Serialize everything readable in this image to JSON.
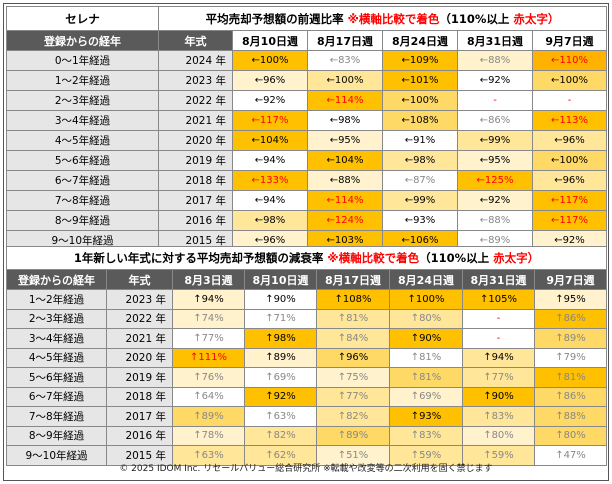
{
  "colors": {
    "header_bg": "#5a5a5a",
    "label_bg": "#e6e6e6",
    "accent_red": "#ff0000",
    "lv0": "#ffffff",
    "lv1": "#fff2cc",
    "lv2": "#ffe699",
    "lv3": "#ffd966",
    "lv4": "#ffc000",
    "lv5": "#ffb300"
  },
  "table1": {
    "model": "セレナ",
    "title": "平均売却予想額の前週比率",
    "note": "※横軸比較で着色",
    "note2": "（110%以上",
    "note3": "赤太字）",
    "headers": [
      "登録からの経年",
      "年式",
      "8月10日週",
      "8月17日週",
      "8月24日週",
      "8月31日週",
      "9月7日週"
    ],
    "rows": [
      {
        "label": "0～1年経過",
        "year": "2024 年",
        "cells": [
          {
            "t": "←100%",
            "c": 4,
            "b": true
          },
          {
            "t": "←83%",
            "c": 0,
            "g": true
          },
          {
            "t": "←109%",
            "c": 4,
            "b": true
          },
          {
            "t": "←88%",
            "c": 1,
            "g": true
          },
          {
            "t": "←110%",
            "c": 5,
            "r": true
          }
        ]
      },
      {
        "label": "1～2年経過",
        "year": "2023 年",
        "cells": [
          {
            "t": "←96%",
            "c": 1
          },
          {
            "t": "←100%",
            "c": 2
          },
          {
            "t": "←101%",
            "c": 4,
            "b": true
          },
          {
            "t": "←92%",
            "c": 0
          },
          {
            "t": "←100%",
            "c": 3,
            "b": true
          }
        ]
      },
      {
        "label": "2～3年経過",
        "year": "2022 年",
        "cells": [
          {
            "t": "←92%",
            "c": 0
          },
          {
            "t": "←114%",
            "c": 4,
            "r": true
          },
          {
            "t": "←100%",
            "c": 3,
            "b": true
          },
          {
            "t": "-",
            "c": 0,
            "r": true
          },
          {
            "t": "-",
            "c": 0,
            "r": true
          }
        ]
      },
      {
        "label": "3～4年経過",
        "year": "2021 年",
        "cells": [
          {
            "t": "←117%",
            "c": 4,
            "r": true
          },
          {
            "t": "←98%",
            "c": 0
          },
          {
            "t": "←108%",
            "c": 3,
            "b": true
          },
          {
            "t": "←86%",
            "c": 0,
            "g": true
          },
          {
            "t": "←113%",
            "c": 4,
            "r": true
          }
        ]
      },
      {
        "label": "4～5年経過",
        "year": "2020 年",
        "cells": [
          {
            "t": "←104%",
            "c": 4,
            "b": true
          },
          {
            "t": "←95%",
            "c": 1
          },
          {
            "t": "←91%",
            "c": 0
          },
          {
            "t": "←99%",
            "c": 2
          },
          {
            "t": "←96%",
            "c": 2
          }
        ]
      },
      {
        "label": "5～6年経過",
        "year": "2019 年",
        "cells": [
          {
            "t": "←94%",
            "c": 0
          },
          {
            "t": "←104%",
            "c": 4,
            "b": true
          },
          {
            "t": "←98%",
            "c": 2
          },
          {
            "t": "←95%",
            "c": 1
          },
          {
            "t": "←100%",
            "c": 3
          }
        ]
      },
      {
        "label": "6～7年経過",
        "year": "2018 年",
        "cells": [
          {
            "t": "←133%",
            "c": 4,
            "r": true
          },
          {
            "t": "←88%",
            "c": 1
          },
          {
            "t": "←87%",
            "c": 0,
            "g": true
          },
          {
            "t": "←125%",
            "c": 4,
            "r": true
          },
          {
            "t": "←96%",
            "c": 2
          }
        ]
      },
      {
        "label": "7～8年経過",
        "year": "2017 年",
        "cells": [
          {
            "t": "←94%",
            "c": 0
          },
          {
            "t": "←114%",
            "c": 4,
            "r": true
          },
          {
            "t": "←99%",
            "c": 2
          },
          {
            "t": "←92%",
            "c": 1
          },
          {
            "t": "←117%",
            "c": 4,
            "r": true
          }
        ]
      },
      {
        "label": "8～9年経過",
        "year": "2016 年",
        "cells": [
          {
            "t": "←98%",
            "c": 2
          },
          {
            "t": "←124%",
            "c": 4,
            "r": true
          },
          {
            "t": "←93%",
            "c": 0
          },
          {
            "t": "←88%",
            "c": 0,
            "g": true
          },
          {
            "t": "←117%",
            "c": 4,
            "r": true
          }
        ]
      },
      {
        "label": "9～10年経過",
        "year": "2015 年",
        "cells": [
          {
            "t": "←96%",
            "c": 1
          },
          {
            "t": "←103%",
            "c": 4,
            "b": true
          },
          {
            "t": "←106%",
            "c": 4,
            "b": true
          },
          {
            "t": "←89%",
            "c": 0,
            "g": true
          },
          {
            "t": "←92%",
            "c": 1
          }
        ]
      }
    ]
  },
  "table2": {
    "title": "1年新しい年式に対する平均売却予想額の減衰率",
    "note": "※横軸比較で着色",
    "note2": "（110%以上",
    "note3": "赤太字）",
    "headers": [
      "登録からの経年",
      "年式",
      "8月3日週",
      "8月10日週",
      "8月17日週",
      "8月24日週",
      "8月31日週",
      "9月7日週"
    ],
    "rows": [
      {
        "label": "1～2年経過",
        "year": "2023 年",
        "cells": [
          {
            "t": "↑94%",
            "c": 1
          },
          {
            "t": "↑90%",
            "c": 0
          },
          {
            "t": "↑108%",
            "c": 4,
            "b": true
          },
          {
            "t": "↑100%",
            "c": 4,
            "b": true
          },
          {
            "t": "↑105%",
            "c": 4,
            "b": true
          },
          {
            "t": "↑95%",
            "c": 1
          }
        ]
      },
      {
        "label": "2～3年経過",
        "year": "2022 年",
        "cells": [
          {
            "t": "↑74%",
            "c": 1,
            "g": true
          },
          {
            "t": "↑71%",
            "c": 0,
            "g": true
          },
          {
            "t": "↑81%",
            "c": 2,
            "g": true
          },
          {
            "t": "↑80%",
            "c": 2,
            "g": true
          },
          {
            "t": "-",
            "c": 0,
            "r": true
          },
          {
            "t": "↑86%",
            "c": 4,
            "g": true
          }
        ]
      },
      {
        "label": "3～4年経過",
        "year": "2021 年",
        "cells": [
          {
            "t": "↑77%",
            "c": 0,
            "g": true
          },
          {
            "t": "↑98%",
            "c": 4,
            "b": true
          },
          {
            "t": "↑84%",
            "c": 2,
            "g": true
          },
          {
            "t": "↑90%",
            "c": 4,
            "b": true
          },
          {
            "t": "-",
            "c": 0,
            "r": true
          },
          {
            "t": "↑89%",
            "c": 3,
            "g": true
          }
        ]
      },
      {
        "label": "4～5年経過",
        "year": "2020 年",
        "cells": [
          {
            "t": "↑111%",
            "c": 4,
            "r": true
          },
          {
            "t": "↑89%",
            "c": 1
          },
          {
            "t": "↑96%",
            "c": 3
          },
          {
            "t": "↑81%",
            "c": 0,
            "g": true
          },
          {
            "t": "↑94%",
            "c": 2
          },
          {
            "t": "↑79%",
            "c": 0,
            "g": true
          }
        ]
      },
      {
        "label": "5～6年経過",
        "year": "2019 年",
        "cells": [
          {
            "t": "↑76%",
            "c": 1,
            "g": true
          },
          {
            "t": "↑69%",
            "c": 0,
            "g": true
          },
          {
            "t": "↑75%",
            "c": 1,
            "g": true
          },
          {
            "t": "↑81%",
            "c": 3,
            "g": true
          },
          {
            "t": "↑77%",
            "c": 2,
            "g": true
          },
          {
            "t": "↑81%",
            "c": 4,
            "g": true
          }
        ]
      },
      {
        "label": "6～7年経過",
        "year": "2018 年",
        "cells": [
          {
            "t": "↑64%",
            "c": 0,
            "g": true
          },
          {
            "t": "↑92%",
            "c": 4,
            "b": true
          },
          {
            "t": "↑77%",
            "c": 2,
            "g": true
          },
          {
            "t": "↑69%",
            "c": 1,
            "g": true
          },
          {
            "t": "↑90%",
            "c": 4,
            "b": true
          },
          {
            "t": "↑86%",
            "c": 3,
            "g": true
          }
        ]
      },
      {
        "label": "7～8年経過",
        "year": "2017 年",
        "cells": [
          {
            "t": "↑89%",
            "c": 3,
            "g": true
          },
          {
            "t": "↑63%",
            "c": 0,
            "g": true
          },
          {
            "t": "↑82%",
            "c": 2,
            "g": true
          },
          {
            "t": "↑93%",
            "c": 4,
            "b": true
          },
          {
            "t": "↑83%",
            "c": 2,
            "g": true
          },
          {
            "t": "↑88%",
            "c": 3,
            "g": true
          }
        ]
      },
      {
        "label": "8～9年経過",
        "year": "2016 年",
        "cells": [
          {
            "t": "↑78%",
            "c": 1,
            "g": true
          },
          {
            "t": "↑82%",
            "c": 2,
            "g": true
          },
          {
            "t": "↑89%",
            "c": 3,
            "g": true
          },
          {
            "t": "↑83%",
            "c": 2,
            "g": true
          },
          {
            "t": "↑80%",
            "c": 1,
            "g": true
          },
          {
            "t": "↑80%",
            "c": 3,
            "g": true
          }
        ]
      },
      {
        "label": "9～10年経過",
        "year": "2015 年",
        "cells": [
          {
            "t": "↑63%",
            "c": 2,
            "g": true
          },
          {
            "t": "↑62%",
            "c": 2,
            "g": true
          },
          {
            "t": "↑51%",
            "c": 1,
            "g": true
          },
          {
            "t": "↑59%",
            "c": 2,
            "g": true
          },
          {
            "t": "↑59%",
            "c": 2,
            "g": true
          },
          {
            "t": "↑47%",
            "c": 0,
            "g": true
          }
        ]
      }
    ]
  },
  "footer": "© 2025 IDOM Inc. リセールバリュー総合研究所 ※転載や改変等の二次利用を固く禁じます"
}
